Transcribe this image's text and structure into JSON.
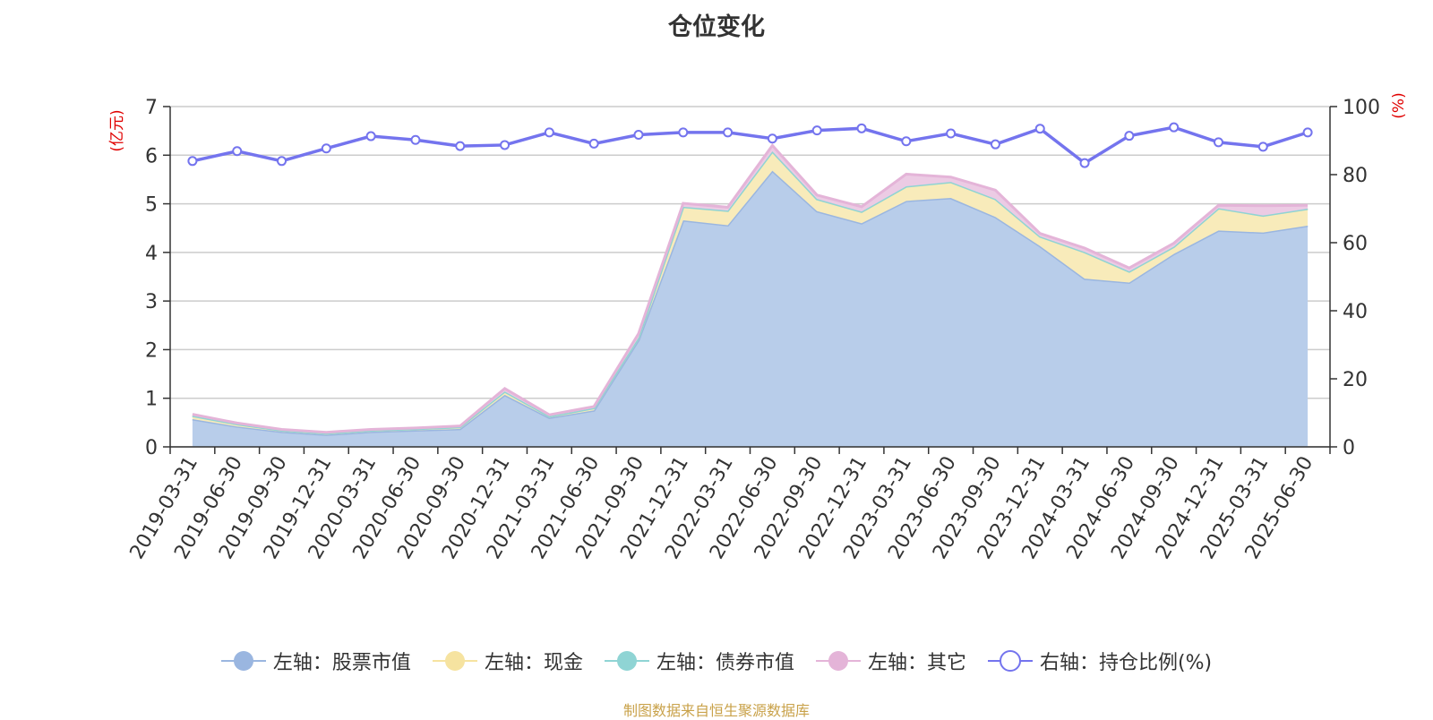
{
  "title": "仓位变化",
  "source": "制图数据来自恒生聚源数据库",
  "chart_data": {
    "type": "area",
    "left_axis": {
      "unit": "(亿元)",
      "range": [
        0,
        7
      ],
      "ticks": [
        0,
        1,
        2,
        3,
        4,
        5,
        6,
        7
      ]
    },
    "right_axis": {
      "unit": "(%)",
      "range": [
        0,
        100
      ],
      "ticks": [
        0,
        20,
        40,
        60,
        80,
        100
      ]
    },
    "categories": [
      "2019-03-31",
      "2019-06-30",
      "2019-09-30",
      "2019-12-31",
      "2020-03-31",
      "2020-06-30",
      "2020-09-30",
      "2020-12-31",
      "2021-03-31",
      "2021-06-30",
      "2021-09-30",
      "2021-12-31",
      "2022-03-31",
      "2022-06-30",
      "2022-09-30",
      "2022-12-31",
      "2023-03-31",
      "2023-06-30",
      "2023-09-30",
      "2023-12-31",
      "2024-03-31",
      "2024-06-30",
      "2024-09-30",
      "2024-12-31",
      "2025-03-31",
      "2025-06-30"
    ],
    "series": [
      {
        "name": "左轴：股票市值",
        "axis": "left",
        "stack": true,
        "color": "#9ab6e0",
        "fill": "#b8cdea",
        "values": [
          0.57,
          0.42,
          0.31,
          0.25,
          0.31,
          0.34,
          0.37,
          1.07,
          0.6,
          0.75,
          2.2,
          4.66,
          4.56,
          5.68,
          4.85,
          4.6,
          5.06,
          5.12,
          4.73,
          4.13,
          3.46,
          3.38,
          3.97,
          4.45,
          4.41,
          4.55
        ]
      },
      {
        "name": "左轴：现金",
        "axis": "left",
        "stack": true,
        "color": "#f6e3a0",
        "fill": "#f8ebba",
        "values": [
          0.07,
          0.05,
          0.03,
          0.03,
          0.03,
          0.03,
          0.04,
          0.07,
          0.03,
          0.05,
          0.05,
          0.28,
          0.3,
          0.4,
          0.25,
          0.24,
          0.3,
          0.33,
          0.37,
          0.2,
          0.55,
          0.23,
          0.15,
          0.46,
          0.35,
          0.35
        ]
      },
      {
        "name": "左轴：债券市值",
        "axis": "left",
        "stack": true,
        "color": "#8fd4d4",
        "fill": "#bfe6e6",
        "values": [
          0,
          0,
          0,
          0,
          0,
          0,
          0,
          0,
          0,
          0,
          0,
          0,
          0,
          0,
          0,
          0,
          0,
          0,
          0,
          0,
          0,
          0,
          0,
          0,
          0,
          0
        ]
      },
      {
        "name": "左轴：其它",
        "axis": "left",
        "stack": true,
        "color": "#e4b4d8",
        "fill": "#eccbe4",
        "values": [
          0.03,
          0.02,
          0.02,
          0.02,
          0.02,
          0.02,
          0.02,
          0.06,
          0.03,
          0.03,
          0.08,
          0.07,
          0.07,
          0.12,
          0.08,
          0.1,
          0.25,
          0.1,
          0.18,
          0.06,
          0.08,
          0.07,
          0.07,
          0.06,
          0.2,
          0.07
        ]
      },
      {
        "name": "右轴：持仓比例(%)",
        "axis": "right",
        "stack": false,
        "color": "#7474ee",
        "values": [
          84.0,
          86.9,
          84.0,
          87.7,
          91.3,
          90.2,
          88.4,
          88.7,
          92.4,
          89.1,
          91.7,
          92.4,
          92.4,
          90.6,
          93.0,
          93.6,
          89.8,
          92.1,
          88.9,
          93.5,
          83.4,
          91.4,
          93.9,
          89.5,
          88.2,
          92.4
        ]
      }
    ],
    "grid": true,
    "legend_position": "bottom"
  }
}
